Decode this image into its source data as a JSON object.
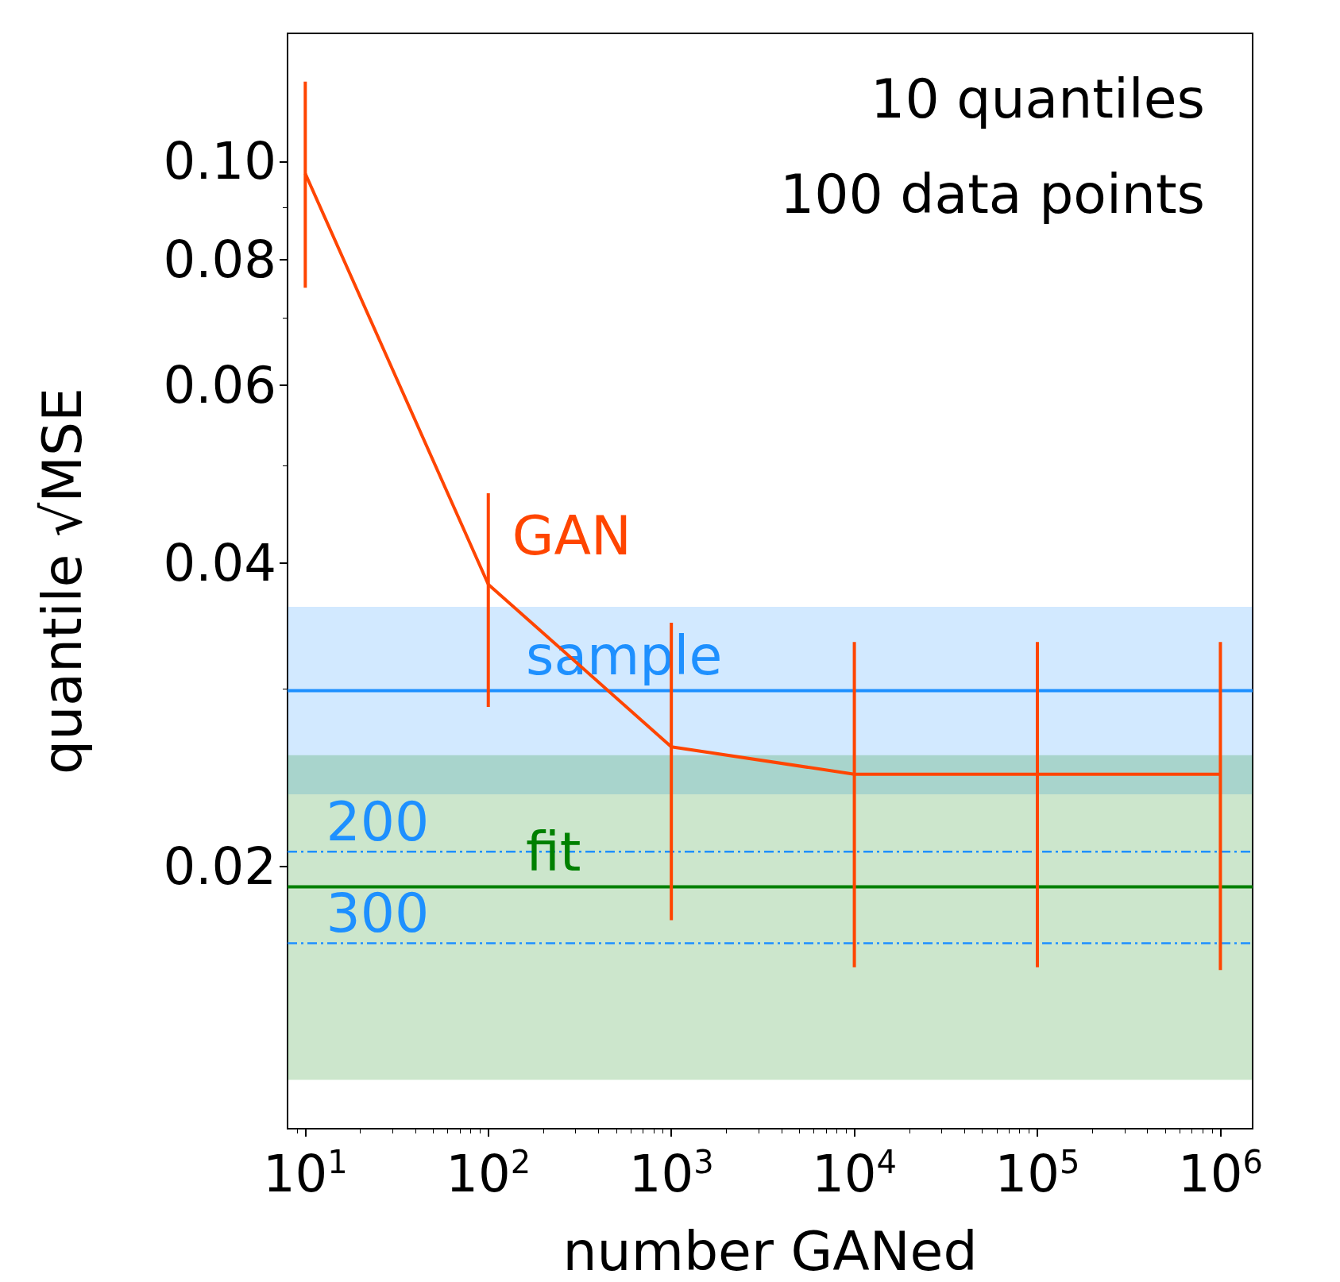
{
  "chart_data": {
    "type": "line",
    "xlabel": "number GANed",
    "ylabel": "quantile √MSE",
    "annotations": [
      "10 quantiles",
      "100 data points",
      {
        "text": "200",
        "x": 13,
        "y": 0.0207
      },
      {
        "text": "300",
        "x": 13,
        "y": 0.0168
      }
    ],
    "x": [
      10,
      100,
      1000,
      10000,
      100000,
      1000000
    ],
    "series": [
      {
        "name": "GAN",
        "color": "#ff4500",
        "values": [
          0.0973,
          0.0381,
          0.0263,
          0.0247,
          0.0247,
          0.0247
        ],
        "errors": [
          [
            0.075,
            0.12
          ],
          [
            0.0288,
            0.0469
          ],
          [
            0.0177,
            0.0349
          ],
          [
            0.0159,
            0.0334
          ],
          [
            0.0159,
            0.0334
          ],
          [
            0.0158,
            0.0334
          ]
        ]
      }
    ],
    "log": "xy",
    "xlim": [
      8,
      1500000
    ],
    "ylim": [
      0.011,
      0.134
    ],
    "xticks": [
      {
        "value": 10,
        "label": "10$^{1}$"
      },
      {
        "value": 100,
        "label": "10$^{2}$"
      },
      {
        "value": 1000,
        "label": "10$^{3}$"
      },
      {
        "value": 10000,
        "label": "10$^{4}$"
      },
      {
        "value": 100000,
        "label": "10$^{5}$"
      },
      {
        "value": 1000000,
        "label": "10$^{6}$"
      }
    ],
    "yticks": [
      {
        "value": 0.02,
        "label": "0.02"
      },
      {
        "value": 0.04,
        "label": "0.04"
      },
      {
        "value": 0.06,
        "label": "0.06"
      },
      {
        "value": 0.08,
        "label": "0.08"
      },
      {
        "value": 0.1,
        "label": "0.10"
      }
    ],
    "ref_lines": [
      {
        "axis": "y",
        "value": 0.0299,
        "label": "sample",
        "color": "#1e90ff",
        "line_style": "solid"
      },
      {
        "axis": "y",
        "value": 0.0191,
        "label": "fit",
        "color": "#008000",
        "line_style": "solid"
      },
      {
        "axis": "y",
        "value": 0.0207,
        "color": "#1e90ff",
        "line_style": "dashed"
      },
      {
        "axis": "y",
        "value": 0.0168,
        "color": "#1e90ff",
        "line_style": "dashed"
      }
    ],
    "bands": [
      {
        "axis": "y",
        "from": 0.0236,
        "to": 0.0362,
        "color": "#1e90ff"
      },
      {
        "axis": "y",
        "from": 0.0123,
        "to": 0.0258,
        "color": "#008000"
      }
    ],
    "grid": false,
    "legend": false,
    "marker": "none",
    "line_style": "solid"
  }
}
